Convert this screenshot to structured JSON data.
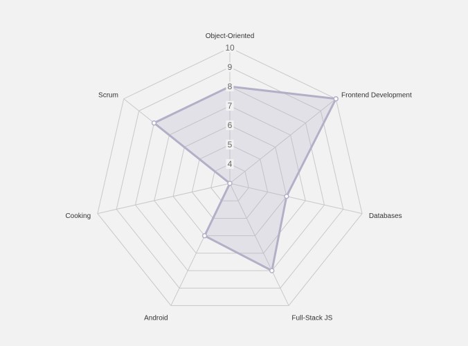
{
  "chart_data": {
    "type": "radar",
    "title": "",
    "axes": [
      "Object-Oriented",
      "Frontend Development",
      "Databases",
      "Full-Stack JS",
      "Android",
      "Cooking",
      "Scrum"
    ],
    "tick_labels": [
      "4",
      "5",
      "6",
      "7",
      "8",
      "9",
      "10"
    ],
    "range": [
      3,
      10
    ],
    "grid": true,
    "series": [
      {
        "values": [
          8,
          10,
          6,
          8,
          6,
          3,
          8
        ],
        "color": "#b3afc7"
      }
    ]
  },
  "colors": {
    "background": "#f2f2f2",
    "grid": "#c8c8c8",
    "series_stroke": "#b3afc7",
    "series_fill": "rgba(179,175,199,0.25)",
    "point_fill": "#ffffff"
  }
}
